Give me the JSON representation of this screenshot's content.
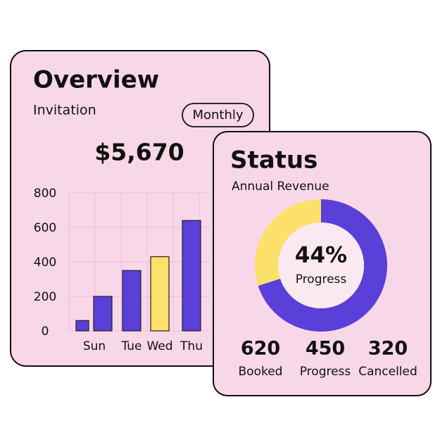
{
  "overview": {
    "title": "Overview",
    "subtitle": "Invitation",
    "period_button": "Monthly",
    "total": "$5,670",
    "chart_data": {
      "type": "bar",
      "categories": [
        null,
        "Sun",
        "Tue",
        "Wed",
        "Thu"
      ],
      "values": [
        60,
        200,
        350,
        430,
        640
      ],
      "colors": [
        "#5a3fd8",
        "#5a3fd8",
        "#5a3fd8",
        "#fbe06a",
        "#5a3fd8"
      ],
      "ylim": [
        0,
        800
      ],
      "yticks": [
        0,
        200,
        400,
        600,
        800
      ],
      "grid": true
    }
  },
  "status": {
    "title": "Status",
    "subtitle": "Annual Revenue",
    "chart_data": {
      "type": "donut",
      "segments": [
        {
          "color": "#5a3fd8",
          "value": 70
        },
        {
          "color": "#fbe06a",
          "value": 30
        }
      ],
      "center_value": "44%",
      "center_label": "Progress"
    },
    "stats": [
      {
        "value": 620,
        "label": "Booked"
      },
      {
        "value": 450,
        "label": "Progress"
      },
      {
        "value": 320,
        "label": "Cancelled"
      }
    ]
  }
}
